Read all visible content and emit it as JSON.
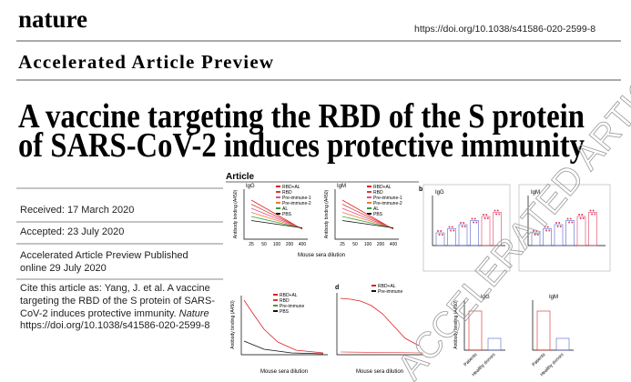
{
  "header": {
    "journal": "nature",
    "doi": "https://doi.org/10.1038/s41586-020-2599-8",
    "section": "Accelerated Article Preview"
  },
  "title": {
    "lines": [
      "A vaccine targeting the RBD of the S protein",
      "of SARS-CoV-2 induces protective immunity"
    ]
  },
  "info": {
    "received": "Received: 17 March 2020",
    "accepted": "Accepted: 23 July 2020",
    "published": [
      "Accelerated Article Preview Published",
      "online 29 July 2020"
    ],
    "citation": [
      "Cite this article as: Yang, J. et al. A vaccine",
      "targeting the RBD of the S protein of SARS-",
      "CoV-2 induces protective immunity. ",
      "Nature",
      "https://doi.org/10.1038/s41586-020-2599-8"
    ]
  },
  "figure": {
    "label": "Article",
    "panel_letters": [
      "b",
      "d"
    ],
    "y_label": "Antibody binding (A450)",
    "x_label": "Mouse sera dilution",
    "dilutions": [
      "25",
      "50",
      "100",
      "200",
      "400"
    ],
    "panels": [
      {
        "title": "IgG",
        "legend": [
          "RBD+AL",
          "RBD",
          "Pre-immune-1",
          "Pre-immune-2",
          "AL",
          "PBS"
        ]
      },
      {
        "title": "IgM",
        "legend": [
          "RBD+AL",
          "RBD",
          "Pre-immune-1",
          "Pre-immune-2",
          "AL",
          "PBS"
        ]
      },
      {
        "title": "IgG"
      },
      {
        "title": "IgM"
      },
      {
        "legend": [
          "RBD+AL",
          "RBD",
          "Pre-immune",
          "PBS"
        ]
      },
      {
        "legend": [
          "RBD+AL",
          "Pre-immune"
        ]
      },
      {
        "title": "IgG",
        "categories": [
          "Patients",
          "Healthy donors"
        ]
      },
      {
        "title": "IgM",
        "categories": [
          "Patients",
          "Healthy donors"
        ]
      }
    ]
  },
  "watermark": "ACCELERATED ARTICLE PREVIEW"
}
